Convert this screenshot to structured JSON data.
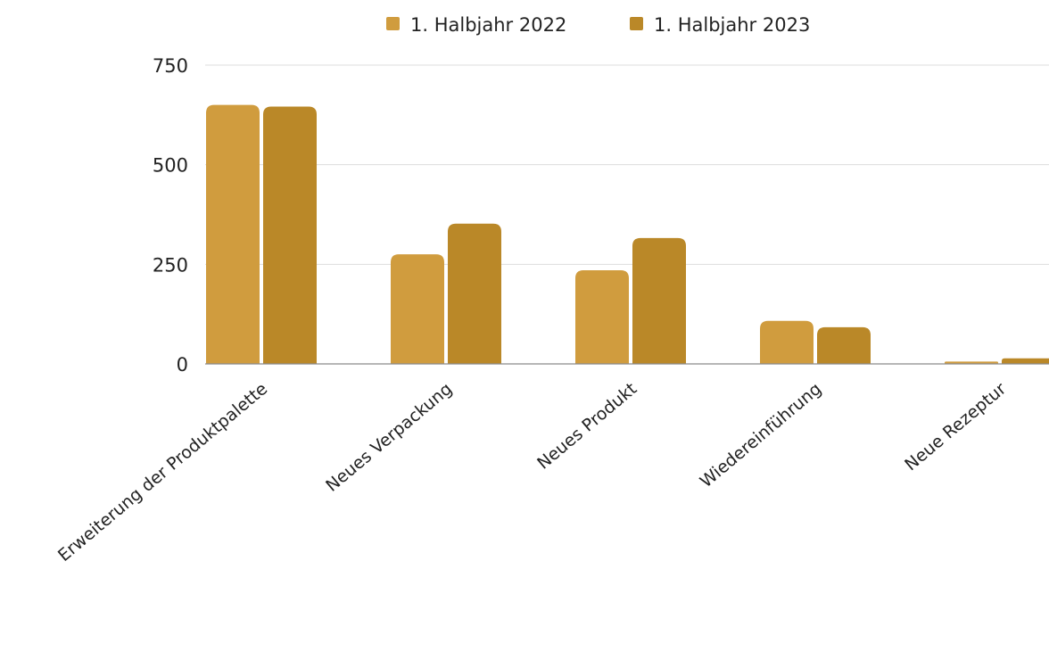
{
  "chart_data": {
    "type": "bar",
    "categories": [
      "Erweiterung der Produktpalette",
      "Neues Verpackung",
      "Neues Produkt",
      "Wiedereinführung",
      "Neue Rezeptur"
    ],
    "series": [
      {
        "name": "1. Halbjahr 2022",
        "color": "#D09C3E",
        "values": [
          650,
          275,
          235,
          108,
          6
        ]
      },
      {
        "name": "1. Halbjahr 2023",
        "color": "#BA8828",
        "values": [
          646,
          352,
          316,
          92,
          14
        ]
      }
    ],
    "yticks": [
      0,
      250,
      500,
      750
    ],
    "ylim": [
      0,
      750
    ],
    "grid": true,
    "legend_position": "top"
  }
}
